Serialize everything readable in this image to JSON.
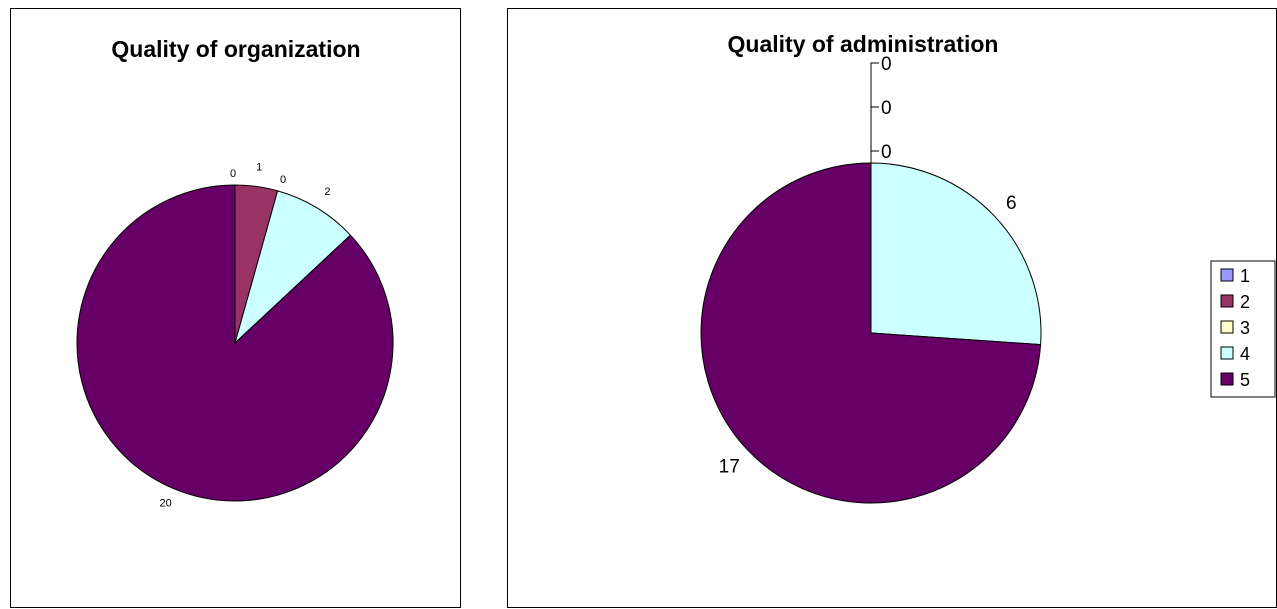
{
  "colors": {
    "1": "#9999ff",
    "2": "#993366",
    "3": "#ffffcc",
    "4": "#ccffff",
    "5": "#660066"
  },
  "chart_data": [
    {
      "type": "pie",
      "title": "Quality of organization",
      "categories": [
        "1",
        "2",
        "3",
        "4",
        "5"
      ],
      "values": [
        0,
        1,
        0,
        2,
        20
      ],
      "data_labels": [
        "0",
        "1",
        "0",
        "2",
        "20"
      ]
    },
    {
      "type": "pie",
      "title": "Quality of administration",
      "categories": [
        "1",
        "2",
        "3",
        "4",
        "5"
      ],
      "values": [
        0,
        0,
        0,
        6,
        17
      ],
      "data_labels": [
        "0",
        "0",
        "0",
        "6",
        "17"
      ],
      "legend": {
        "position": "right",
        "entries": [
          "1",
          "2",
          "3",
          "4",
          "5"
        ]
      }
    }
  ]
}
